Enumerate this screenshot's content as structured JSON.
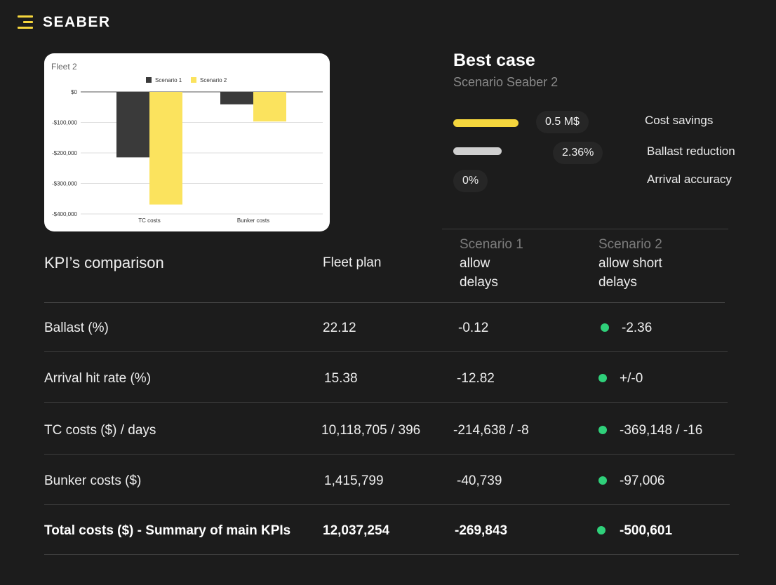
{
  "brand": {
    "name": "SEABER"
  },
  "colors": {
    "accent": "#f5d63d",
    "scenario1": "#3a3a3a",
    "scenario2": "#fbe35e",
    "good": "#2fd07a"
  },
  "chart_data": {
    "type": "bar",
    "title": "Fleet 2",
    "categories": [
      "TC costs",
      "Bunker costs"
    ],
    "series": [
      {
        "name": "Scenario 1",
        "values": [
          -214638,
          -40739
        ]
      },
      {
        "name": "Scenario 2",
        "values": [
          -369148,
          -97006
        ]
      }
    ],
    "ylim": [
      -400000,
      0
    ],
    "yticks": [
      "$0",
      "-$100,000",
      "-$200,000",
      "-$300,000",
      "-$400,000"
    ],
    "legend": "top-center",
    "grid": true
  },
  "best_case": {
    "title": "Best case",
    "subtitle": "Scenario Seaber 2",
    "metrics": [
      {
        "value": "0.5 M$",
        "label": "Cost savings",
        "fill": 0.9
      },
      {
        "value": "2.36%",
        "label": "Ballast reduction",
        "fill": 0.5
      },
      {
        "value": "0%",
        "label": "Arrival accuracy",
        "fill": 0
      }
    ]
  },
  "table": {
    "title": "KPI’s comparison",
    "col_fleet": "Fleet  plan",
    "col_s1_name": "Scenario 1",
    "col_s1_l1": "allow",
    "col_s1_l2": "delays",
    "col_s2_name": "Scenario 2",
    "col_s2_l1": "allow short",
    "col_s2_l2": "delays",
    "rows": [
      {
        "label": "Ballast (%)",
        "fleet": "22.12",
        "s1": "-0.12",
        "s2": "-2.36"
      },
      {
        "label": "Arrival hit rate (%)",
        "fleet": "15.38",
        "s1": "-12.82",
        "s2": "+/-0"
      },
      {
        "label": "TC costs ($) / days",
        "fleet": "10,118,705 / 396",
        "s1": "-214,638 / -8",
        "s2": "-369,148 / -16"
      },
      {
        "label": "Bunker costs  ($)",
        "fleet": "1,415,799",
        "s1": "-40,739",
        "s2": "-97,006"
      },
      {
        "label": "Total costs ($) - Summary of main KPIs",
        "fleet": "12,037,254",
        "s1": "-269,843",
        "s2": "-500,601"
      }
    ]
  }
}
